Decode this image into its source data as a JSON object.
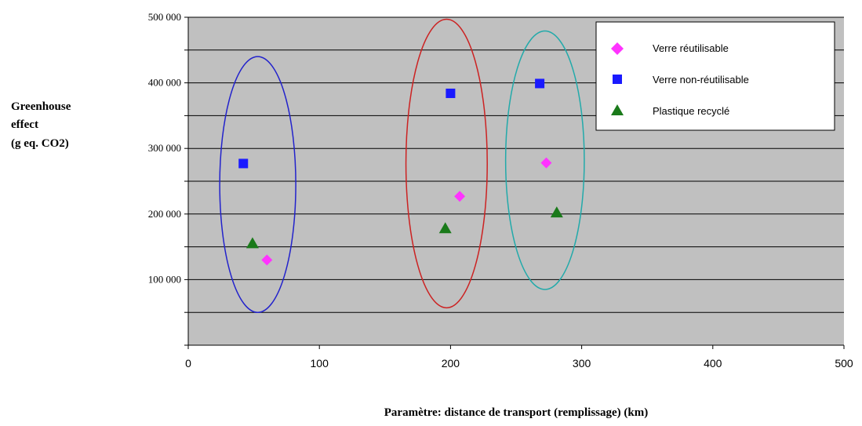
{
  "chart_data": {
    "type": "scatter",
    "title": "",
    "xlabel": "Paramètre: distance de transport (remplissage) (km)",
    "ylabel_lines": [
      "Greenhouse",
      "effect",
      "(g eq. CO2)"
    ],
    "xlim": [
      0,
      500
    ],
    "ylim": [
      0,
      500000
    ],
    "x_ticks": [
      0,
      100,
      200,
      300,
      400,
      500
    ],
    "x_tick_labels": [
      "0",
      "100",
      "200",
      "300",
      "400",
      "500"
    ],
    "y_ticks": [
      100000,
      200000,
      300000,
      400000,
      500000
    ],
    "y_tick_labels": [
      "100 000",
      "200 000",
      "300 000",
      "400 000",
      "500 000"
    ],
    "gridlines_y": [
      50000,
      100000,
      150000,
      200000,
      250000,
      300000,
      350000,
      400000,
      450000,
      500000
    ],
    "grid": true,
    "plot_background": "#c0c0c0",
    "legend_position": "top-right",
    "series": [
      {
        "name": "Verre réutilisable",
        "marker": "diamond",
        "color": "#ff33ff",
        "points": [
          {
            "x": 60,
            "y": 130000
          },
          {
            "x": 207,
            "y": 227000
          },
          {
            "x": 273,
            "y": 278000
          }
        ]
      },
      {
        "name": "Verre non-réutilisable",
        "marker": "square",
        "color": "#1a1aff",
        "points": [
          {
            "x": 42,
            "y": 277000
          },
          {
            "x": 200,
            "y": 384000
          },
          {
            "x": 268,
            "y": 399000
          }
        ]
      },
      {
        "name": "Plastique recyclé",
        "marker": "triangle",
        "color": "#1a7a1a",
        "points": [
          {
            "x": 49,
            "y": 155000
          },
          {
            "x": 196,
            "y": 178000
          },
          {
            "x": 281,
            "y": 202000
          }
        ]
      }
    ],
    "ellipses": [
      {
        "cx": 53,
        "cy": 245000,
        "rx": 29,
        "ry": 195000,
        "color": "#2222cc"
      },
      {
        "cx": 197,
        "cy": 277000,
        "rx": 31,
        "ry": 220000,
        "color": "#cc2222"
      },
      {
        "cx": 272,
        "cy": 282000,
        "rx": 30,
        "ry": 197000,
        "color": "#22aaaa"
      }
    ]
  }
}
